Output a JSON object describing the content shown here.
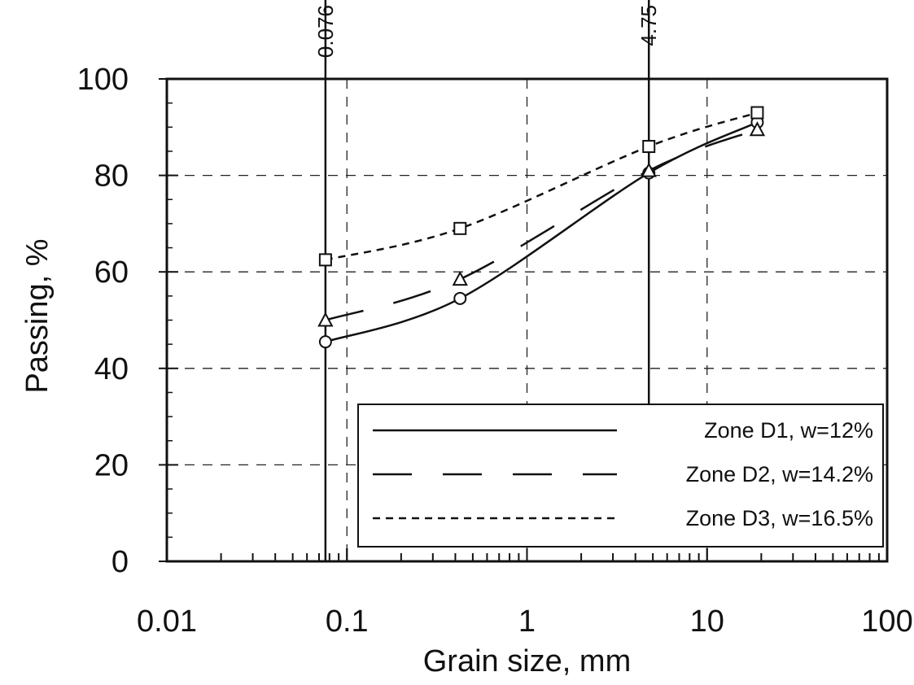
{
  "chart_data": {
    "type": "line",
    "x_scale": "log",
    "xlabel": "Grain size,   mm",
    "ylabel": "Passing,   %",
    "xlim": [
      0.01,
      100
    ],
    "ylim": [
      0,
      100
    ],
    "x_ticks": [
      "0.01",
      "0.1",
      "1",
      "10",
      "100"
    ],
    "y_ticks": [
      "0",
      "20",
      "40",
      "60",
      "80",
      "100"
    ],
    "grid": true,
    "legend_position": "lower-right",
    "reference_lines": [
      {
        "x": 0.076,
        "label": "0.076"
      },
      {
        "x": 4.75,
        "label": "4.75"
      }
    ],
    "series": [
      {
        "name": "Zone D1,  w=12%",
        "line_style": "solid",
        "marker": "circle",
        "x": [
          0.076,
          0.425,
          4.75,
          19
        ],
        "y": [
          45.5,
          54.5,
          80.5,
          91
        ]
      },
      {
        "name": "Zone D2,  w=14.2%",
        "line_style": "long-dash",
        "marker": "triangle",
        "x": [
          0.076,
          0.425,
          4.75,
          19
        ],
        "y": [
          50,
          58.5,
          81,
          89.5
        ]
      },
      {
        "name": "Zone D3,  w=16.5%",
        "line_style": "short-dash",
        "marker": "square",
        "x": [
          0.076,
          0.425,
          4.75,
          19
        ],
        "y": [
          62.5,
          69,
          86,
          93
        ]
      }
    ]
  }
}
